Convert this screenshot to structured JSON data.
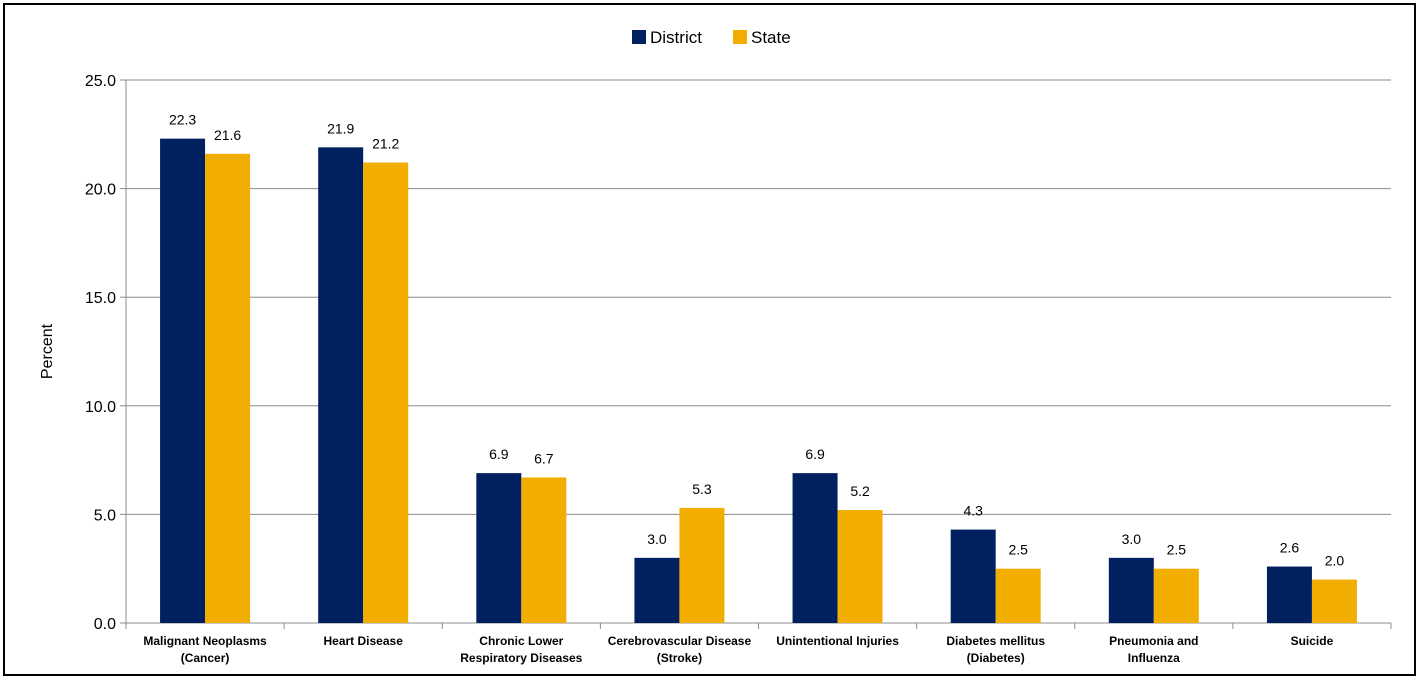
{
  "chart_data": {
    "type": "bar",
    "title": "",
    "xlabel": "",
    "ylabel": "Percent",
    "ylim": [
      0,
      25
    ],
    "yticks": [
      "0.0",
      "5.0",
      "10.0",
      "15.0",
      "20.0",
      "25.0"
    ],
    "grid": true,
    "legend_position": "top-center",
    "categories": [
      [
        "Malignant Neoplasms",
        "(Cancer)"
      ],
      [
        "Heart Disease"
      ],
      [
        "Chronic Lower",
        "Respiratory Diseases"
      ],
      [
        "Cerebrovascular Disease",
        "(Stroke)"
      ],
      [
        "Unintentional Injuries"
      ],
      [
        "Diabetes mellitus",
        "(Diabetes)"
      ],
      [
        "Pneumonia and",
        "Influenza"
      ],
      [
        "Suicide"
      ]
    ],
    "series": [
      {
        "name": "District",
        "color": "#002060",
        "values": [
          22.3,
          21.9,
          6.9,
          3.0,
          6.9,
          4.3,
          3.0,
          2.6
        ],
        "labels": [
          "22.3",
          "21.9",
          "6.9",
          "3.0",
          "6.9",
          "4.3",
          "3.0",
          "2.6"
        ]
      },
      {
        "name": "State",
        "color": "#F2AE00",
        "values": [
          21.6,
          21.2,
          6.7,
          5.3,
          5.2,
          2.5,
          2.5,
          2.0
        ],
        "labels": [
          "21.6",
          "21.2",
          "6.7",
          "5.3",
          "5.2",
          "2.5",
          "2.5",
          "2.0"
        ]
      }
    ]
  }
}
